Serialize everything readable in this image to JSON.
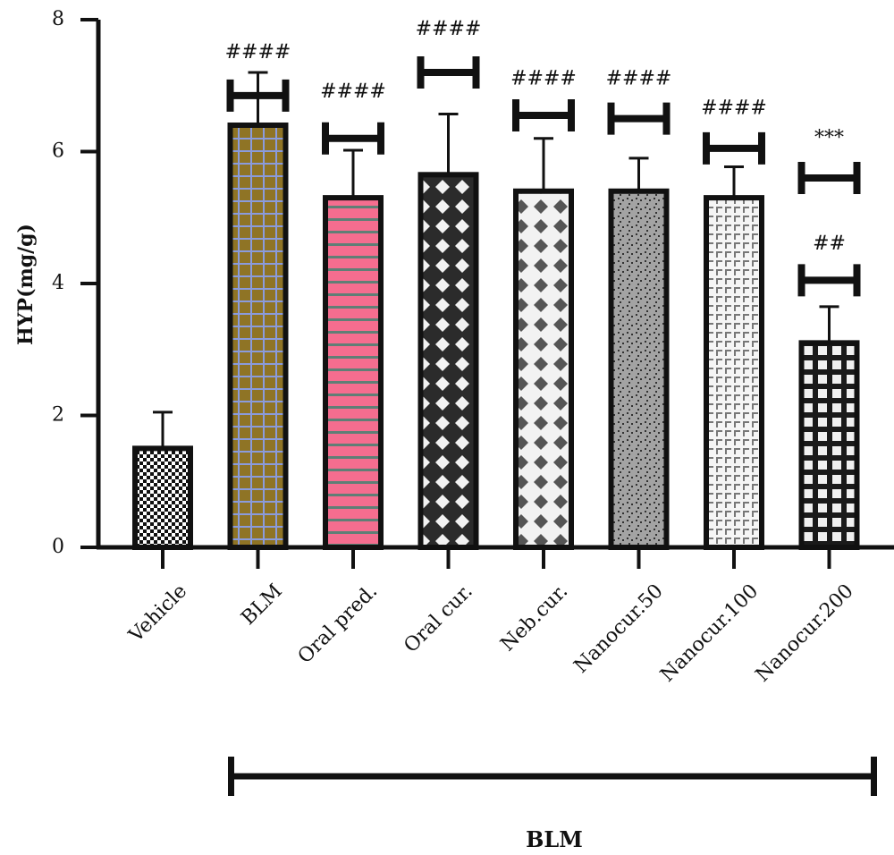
{
  "chart_data": {
    "type": "bar",
    "ylabel": "HYP(mg/g)",
    "ylim": [
      0,
      8
    ],
    "yticks": [
      0,
      2,
      4,
      6,
      8
    ],
    "categories": [
      "Vehicle",
      "BLM",
      "Oral pred.",
      "Oral cur.",
      "Neb.cur.",
      "Nanocur.50",
      "Nanocur.100",
      "Nanocur.200"
    ],
    "values": [
      1.5,
      6.4,
      5.3,
      5.65,
      5.4,
      5.4,
      5.3,
      3.1
    ],
    "errors": [
      0.55,
      0.8,
      0.72,
      0.92,
      0.8,
      0.5,
      0.47,
      0.55
    ],
    "annotations": [
      {
        "category": "BLM",
        "text": "####"
      },
      {
        "category": "Oral pred.",
        "text": "####"
      },
      {
        "category": "Oral cur.",
        "text": "####"
      },
      {
        "category": "Neb.cur.",
        "text": "####"
      },
      {
        "category": "Nanocur.50",
        "text": "####"
      },
      {
        "category": "Nanocur.100",
        "text": "####"
      },
      {
        "category": "Nanocur.200",
        "text": "##"
      },
      {
        "category": "Nanocur.200",
        "text": "***"
      }
    ],
    "group_label": "BLM",
    "grid": false,
    "legend": "none",
    "bar_fills": [
      {
        "pattern": "checker",
        "bg": "#ffffff",
        "fg": "#111111"
      },
      {
        "pattern": "grid",
        "bg": "#8f7425",
        "fg": "#8a9bdc"
      },
      {
        "pattern": "hlines",
        "bg": "#f56d8f",
        "fg": "#5f7f76"
      },
      {
        "pattern": "diamonds",
        "bg": "#2b2b2b",
        "fg": "#f2f2f2"
      },
      {
        "pattern": "diamonds",
        "bg": "#f2f2f2",
        "fg": "#555555"
      },
      {
        "pattern": "dots",
        "bg": "#a3a3a3",
        "fg": "#333333"
      },
      {
        "pattern": "brackets",
        "bg": "#f5f5f5",
        "fg": "#777777"
      },
      {
        "pattern": "squares",
        "bg": "#1a1a1a",
        "fg": "#f0f0f0"
      }
    ]
  }
}
